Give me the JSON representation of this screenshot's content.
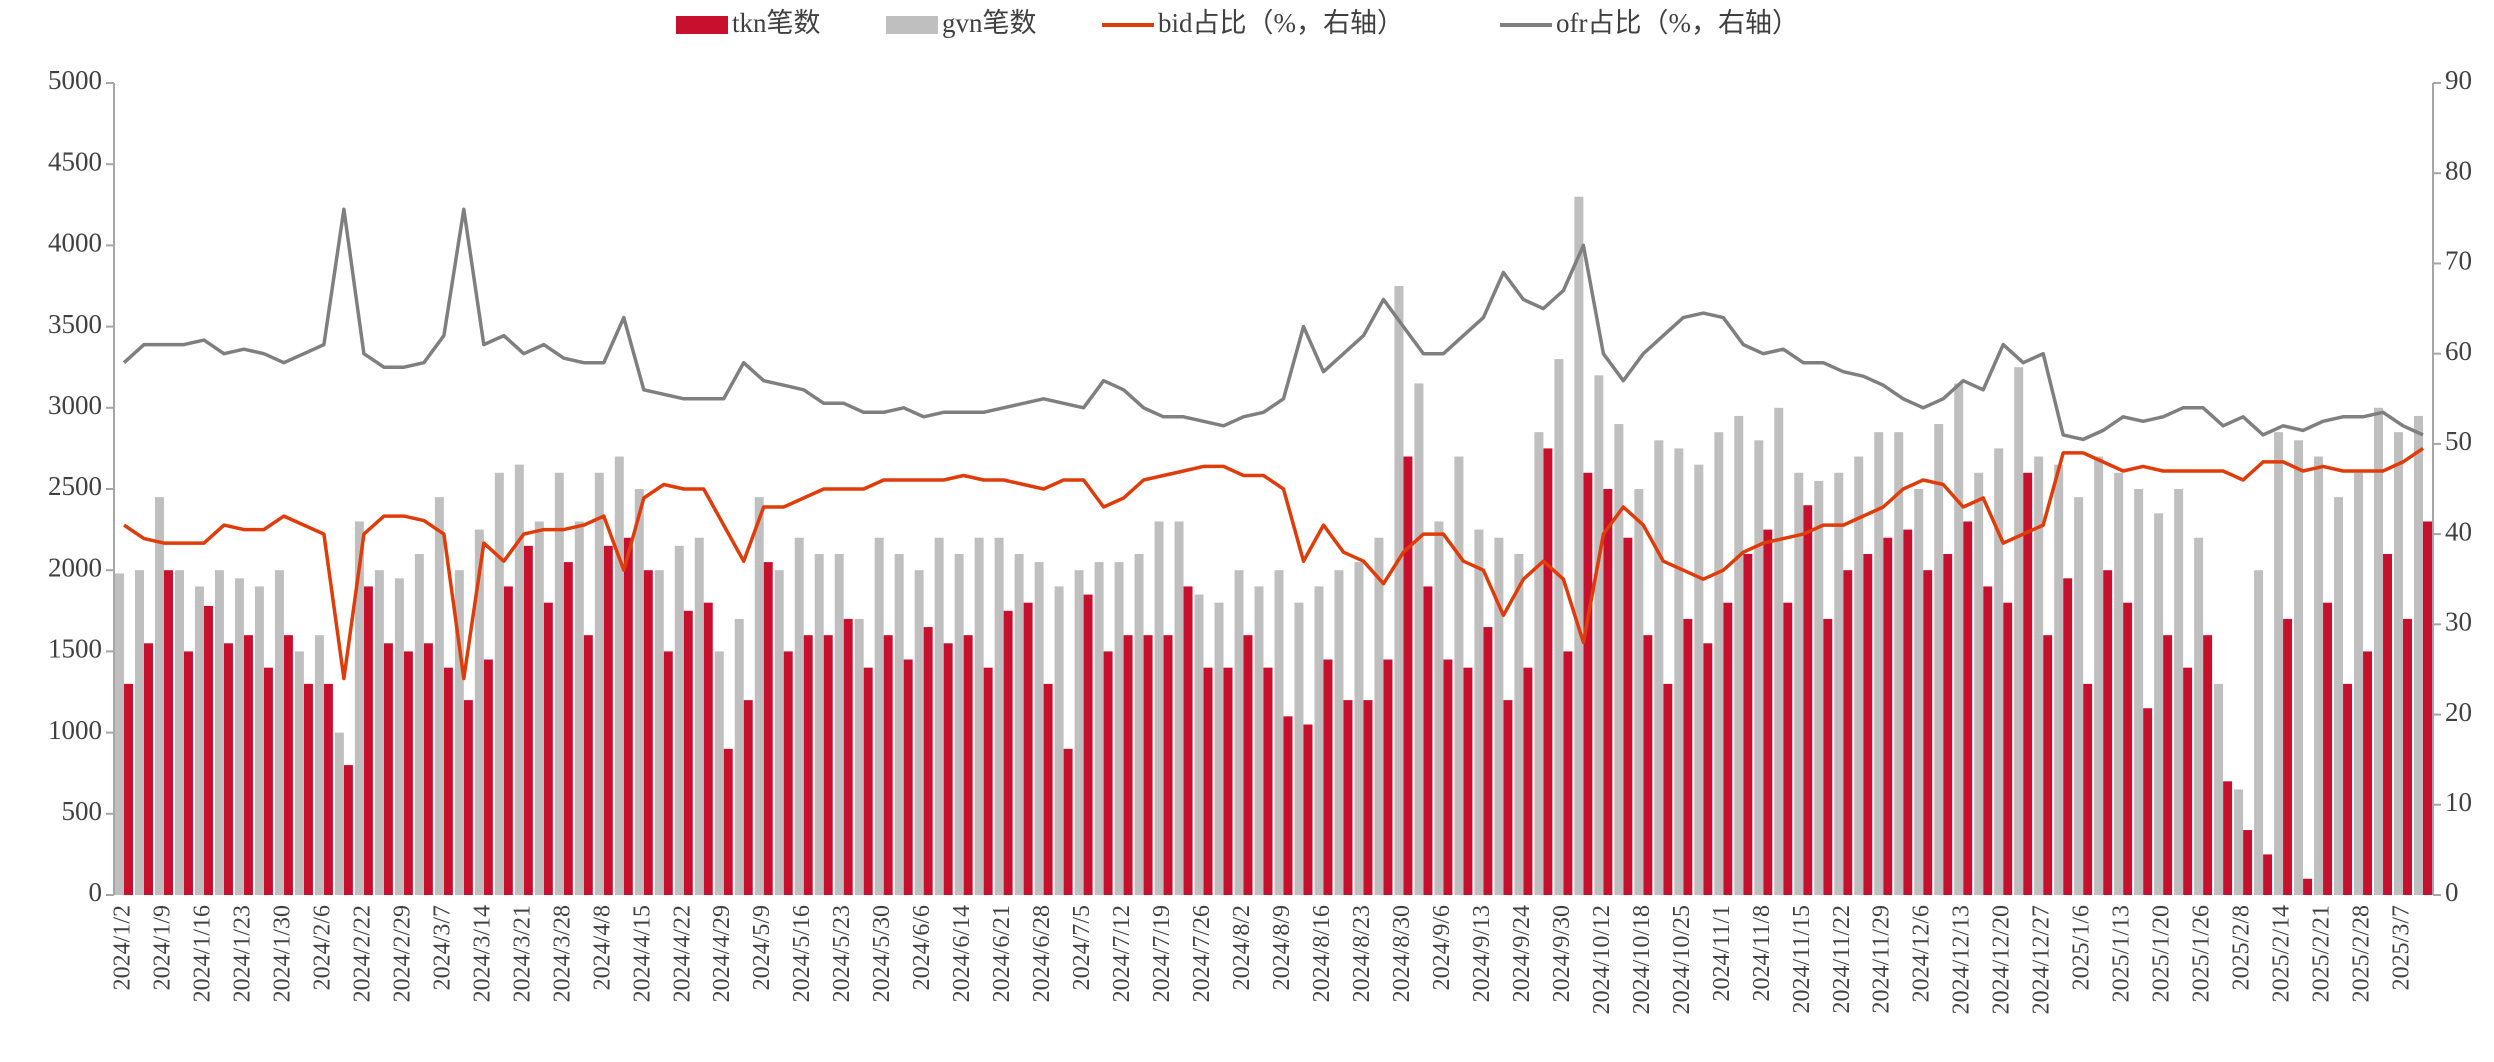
{
  "chart_data": {
    "type": "bar_line",
    "categories": [
      "2024/1/2",
      null,
      "2024/1/9",
      null,
      "2024/1/16",
      null,
      "2024/1/23",
      null,
      "2024/1/30",
      null,
      "2024/2/6",
      null,
      "2024/2/22",
      null,
      "2024/2/29",
      null,
      "2024/3/7",
      null,
      "2024/3/14",
      null,
      "2024/3/21",
      null,
      "2024/3/28",
      null,
      "2024/4/8",
      null,
      "2024/4/15",
      null,
      "2024/4/22",
      null,
      "2024/4/29",
      null,
      "2024/5/9",
      null,
      "2024/5/16",
      null,
      "2024/5/23",
      null,
      "2024/5/30",
      null,
      "2024/6/6",
      null,
      "2024/6/14",
      null,
      "2024/6/21",
      null,
      "2024/6/28",
      null,
      "2024/7/5",
      null,
      "2024/7/12",
      null,
      "2024/7/19",
      null,
      "2024/7/26",
      null,
      "2024/8/2",
      null,
      "2024/8/9",
      null,
      "2024/8/16",
      null,
      "2024/8/23",
      null,
      "2024/8/30",
      null,
      "2024/9/6",
      null,
      "2024/9/13",
      null,
      "2024/9/24",
      null,
      "2024/9/30",
      null,
      "2024/10/12",
      null,
      "2024/10/18",
      null,
      "2024/10/25",
      null,
      "2024/11/1",
      null,
      "2024/11/8",
      null,
      "2024/11/15",
      null,
      "2024/11/22",
      null,
      "2024/11/29",
      null,
      "2024/12/6",
      null,
      "2024/12/13",
      null,
      "2024/12/20",
      null,
      "2024/12/27",
      null,
      "2025/1/6",
      null,
      "2025/1/13",
      null,
      "2025/1/20",
      null,
      "2025/1/26",
      null,
      "2025/2/8",
      null,
      "2025/2/14",
      null,
      "2025/2/21",
      null,
      "2025/2/28",
      null,
      "2025/3/7",
      null
    ],
    "series": [
      {
        "name": "tkn笔数",
        "kind": "bar",
        "color": "#c8102e",
        "values": [
          1300,
          1550,
          2000,
          1500,
          1780,
          1550,
          1600,
          1400,
          1600,
          1300,
          1300,
          800,
          1900,
          1550,
          1500,
          1550,
          1400,
          1200,
          1450,
          1900,
          2150,
          1800,
          2050,
          1600,
          2150,
          2200,
          2000,
          1500,
          1750,
          1800,
          900,
          1200,
          2050,
          1500,
          1600,
          1600,
          1700,
          1400,
          1600,
          1450,
          1650,
          1550,
          1600,
          1400,
          1750,
          1800,
          1300,
          900,
          1850,
          1500,
          1600,
          1600,
          1600,
          1900,
          1400,
          1400,
          1600,
          1400,
          1100,
          1050,
          1450,
          1200,
          1200,
          1450,
          2700,
          1900,
          1450,
          1400,
          1650,
          1200,
          1400,
          2750,
          1500,
          2600,
          2500,
          2200,
          1600,
          1300,
          1700,
          1550,
          1800,
          2100,
          2250,
          1800,
          2400,
          1700,
          2000,
          2100,
          2200,
          2250,
          2000,
          2100,
          2300,
          1900,
          1800,
          2600,
          1600,
          1950,
          1300,
          2000,
          1800,
          1150,
          1600,
          1400,
          1600,
          700,
          400,
          250,
          1700,
          100,
          1800,
          1300,
          1500,
          2100,
          1700,
          2300
        ]
      },
      {
        "name": "gvn笔数",
        "kind": "bar",
        "color": "#bfbfbf",
        "values": [
          1980,
          2000,
          2450,
          2000,
          1900,
          2000,
          1950,
          1900,
          2000,
          1500,
          1600,
          1000,
          2300,
          2000,
          1950,
          2100,
          2450,
          2000,
          2250,
          2600,
          2650,
          2300,
          2600,
          2300,
          2600,
          2700,
          2500,
          2000,
          2150,
          2200,
          1500,
          1700,
          2450,
          2000,
          2200,
          2100,
          2100,
          1700,
          2200,
          2100,
          2000,
          2200,
          2100,
          2200,
          2200,
          2100,
          2050,
          1900,
          2000,
          2050,
          2050,
          2100,
          2300,
          2300,
          1850,
          1800,
          2000,
          1900,
          2000,
          1800,
          1900,
          2000,
          2050,
          2200,
          3750,
          3150,
          2300,
          2700,
          2250,
          2200,
          2100,
          2850,
          3300,
          4300,
          3200,
          2900,
          2500,
          2800,
          2750,
          2650,
          2850,
          2950,
          2800,
          3000,
          2600,
          2550,
          2600,
          2700,
          2850,
          2850,
          2500,
          2900,
          3150,
          2600,
          2750,
          3250,
          2700,
          2650,
          2450,
          2700,
          2600,
          2500,
          2350,
          2500,
          2200,
          1300,
          650,
          2000,
          2850,
          2800,
          2700,
          2450,
          2600,
          3000,
          2850,
          2950
        ]
      },
      {
        "name": "bid占比（%，右轴）",
        "kind": "line",
        "axis": "y2",
        "color": "#e03c0a",
        "values": [
          41,
          39.5,
          39,
          39,
          39,
          41,
          40.5,
          40.5,
          42,
          41,
          40,
          24,
          40,
          42,
          42,
          41.5,
          40,
          24,
          39,
          37,
          40,
          40.5,
          40.5,
          41,
          42,
          36,
          44,
          45.5,
          45,
          45,
          41,
          37,
          43,
          43,
          44,
          45,
          45,
          45,
          46,
          46,
          46,
          46,
          46.5,
          46,
          46,
          45.5,
          45,
          46,
          46,
          43,
          44,
          46,
          46.5,
          47,
          47.5,
          47.5,
          46.5,
          46.5,
          45,
          37,
          41,
          38,
          37,
          34.5,
          38,
          40,
          40,
          37,
          36,
          31,
          35,
          37,
          35,
          28,
          40,
          43,
          41,
          37,
          36,
          35,
          36,
          38,
          39,
          39.5,
          40,
          41,
          41,
          42,
          43,
          45,
          46,
          45.5,
          43,
          44,
          39,
          40,
          41,
          49,
          49,
          48,
          47,
          47.5,
          47,
          47,
          47,
          47,
          46,
          48,
          48,
          47,
          47.5,
          47,
          47,
          47,
          48,
          49.5
        ]
      },
      {
        "name": "ofr占比（%，右轴）",
        "kind": "line",
        "axis": "y2",
        "color": "#7f7f7f",
        "values": [
          59,
          61,
          61,
          61,
          61.5,
          60,
          60.5,
          60,
          59,
          60,
          61,
          76,
          60,
          58.5,
          58.5,
          59,
          62,
          76,
          61,
          62,
          60,
          61,
          59.5,
          59,
          59,
          64,
          56,
          55.5,
          55,
          55,
          55,
          59,
          57,
          56.5,
          56,
          54.5,
          54.5,
          53.5,
          53.5,
          54,
          53,
          53.5,
          53.5,
          53.5,
          54,
          54.5,
          55,
          54.5,
          54,
          57,
          56,
          54,
          53,
          53,
          52.5,
          52,
          53,
          53.5,
          55,
          63,
          58,
          60,
          62,
          66,
          63,
          60,
          60,
          62,
          64,
          69,
          66,
          65,
          67,
          72,
          60,
          57,
          60,
          62,
          64,
          64.5,
          64,
          61,
          60,
          60.5,
          59,
          59,
          58,
          57.5,
          56.5,
          55,
          54,
          55,
          57,
          56,
          61,
          59,
          60,
          51,
          50.5,
          51.5,
          53,
          52.5,
          53,
          54,
          54,
          52,
          53,
          51,
          52,
          51.5,
          52.5,
          53,
          53,
          53.5,
          52,
          51
        ]
      }
    ],
    "ylim": [
      0,
      5000
    ],
    "yticks": [
      0,
      500,
      1000,
      1500,
      2000,
      2500,
      3000,
      3500,
      4000,
      4500,
      5000
    ],
    "y2lim": [
      0,
      90
    ],
    "y2ticks": [
      0,
      10,
      20,
      30,
      40,
      50,
      60,
      70,
      80,
      90
    ],
    "legend": "top"
  }
}
